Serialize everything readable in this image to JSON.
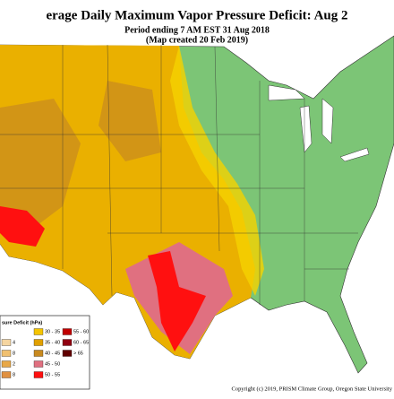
{
  "header": {
    "title": "erage Daily Maximum Vapor Pressure Deficit: Aug 2",
    "subtitle_1": "Period ending 7 AM EST 31 Aug 2018",
    "subtitle_2": "(Map created 20 Feb 2019)"
  },
  "legend": {
    "title": "sure Deficit (hPa)",
    "items": [
      {
        "label": "4",
        "color": "#f5d5a0"
      },
      {
        "label": "8",
        "color": "#f0c070"
      },
      {
        "label": "2",
        "color": "#e8a848"
      },
      {
        "label": "8",
        "color": "#e09040"
      },
      {
        "label": "30 - 35",
        "color": "#f5c400"
      },
      {
        "label": "35 - 40",
        "color": "#e0a000"
      },
      {
        "label": "40 - 45",
        "color": "#c88a20"
      },
      {
        "label": "45 - 50",
        "color": "#e07080"
      },
      {
        "label": "50 - 55",
        "color": "#ff1010"
      },
      {
        "label": "55 - 60",
        "color": "#c00000"
      },
      {
        "label": "60 - 65",
        "color": "#900010"
      },
      {
        "label": "> 65",
        "color": "#600000"
      }
    ]
  },
  "credit": "Copyright (c) 2019, PRISM Climate Group, Oregon State University"
}
